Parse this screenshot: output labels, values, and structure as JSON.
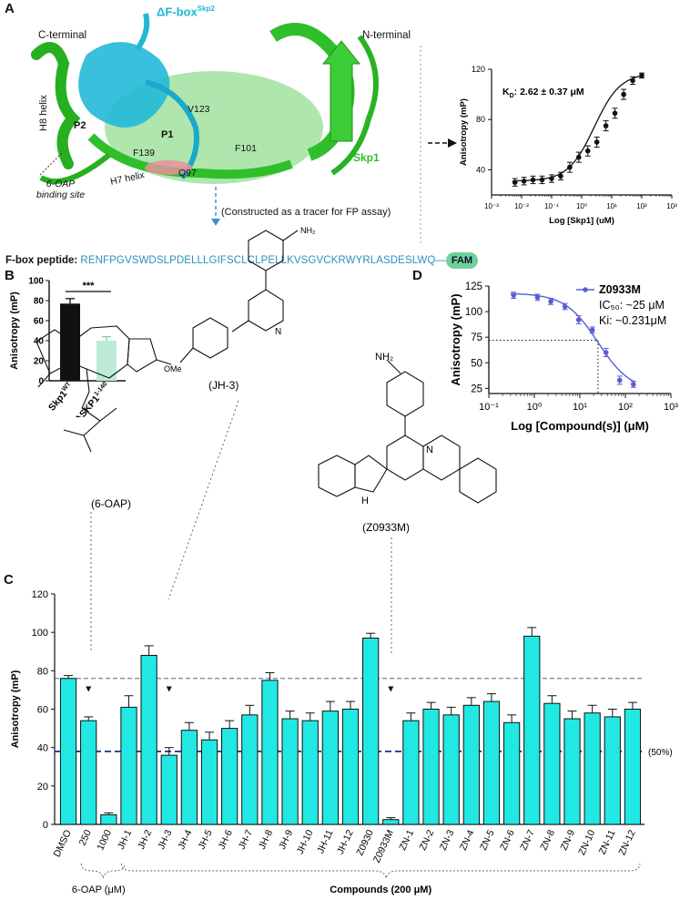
{
  "panels": {
    "A": "A",
    "B": "B",
    "C": "C",
    "D": "D"
  },
  "structure": {
    "c_terminal": "C-terminal",
    "n_terminal": "N-terminal",
    "fbox_label": "ΔF-box",
    "fbox_sup": "Skp2",
    "h8_helix": "H8 helix",
    "h7_helix": "H7 helix",
    "p1": "P1",
    "p2": "P2",
    "v123": "V123",
    "f139": "F139",
    "f101": "F101",
    "q97": "Q97",
    "skp1": "Skp1",
    "oap_site_line1": "6-OAP",
    "oap_site_line2": "binding site",
    "tracer_note": "(Constructed as a tracer for FP assay)"
  },
  "peptide": {
    "label": "F-box peptide",
    "sequence": "RENFPGVSWDSLPDELLLGIFSCLCLPELLKVSGVCKRWYRLASDESLWQ",
    "tag": "FAM"
  },
  "molecules": {
    "jh3": "(JH-3)",
    "oap": "(6-OAP)",
    "z0933m": "(Z0933M)",
    "nh2": "NH₂",
    "ome": "OMe",
    "n": "N",
    "nh": "H"
  },
  "chart_data": [
    {
      "panel": "A",
      "type": "scatter",
      "xlabel": "Log [Skp1] (uM)",
      "ylabel": "Anisotropy (mP)",
      "log_x": true,
      "xlim": [
        0.001,
        1000
      ],
      "ylim": [
        20,
        120
      ],
      "xticks": [
        "10⁻³",
        "10⁻²",
        "10⁻¹",
        "10⁰",
        "10¹",
        "10²",
        "10³"
      ],
      "yticks": [
        40,
        80,
        120
      ],
      "annotation": "K<sub>D</sub>: 2.62 ± 0.37 μM",
      "x": [
        0.006,
        0.012,
        0.024,
        0.048,
        0.1,
        0.2,
        0.4,
        0.8,
        1.6,
        3.2,
        6.4,
        12.8,
        25,
        50,
        100
      ],
      "y": [
        30,
        31,
        32,
        32,
        33,
        35,
        42,
        50,
        55,
        62,
        75,
        85,
        100,
        111,
        115
      ],
      "err": [
        3,
        3,
        3,
        3,
        3,
        3,
        4,
        4,
        4,
        4,
        4,
        4,
        4,
        3,
        2
      ],
      "fit": {
        "bottom": 31,
        "top": 117,
        "kd": 2.62,
        "hill": 1
      }
    },
    {
      "panel": "B",
      "type": "bar",
      "ylabel": "Anisotropy (mP)",
      "ylim": [
        0,
        100
      ],
      "yticks": [
        0,
        20,
        40,
        60,
        80,
        100
      ],
      "categories": [
        "Skp1",
        "ΔSKP1"
      ],
      "category_sups": [
        "WT",
        "1-140"
      ],
      "values": [
        77,
        40
      ],
      "errors": [
        5,
        4
      ],
      "colors": [
        "#111111",
        "#bdebd5"
      ],
      "significance": "***"
    },
    {
      "panel": "D",
      "type": "line",
      "xlabel": "Log [Compound(s)] (μM)",
      "ylabel": "Anisotropy (mP)",
      "log_x": true,
      "xlim": [
        0.1,
        1000
      ],
      "ylim": [
        20,
        125
      ],
      "xticks": [
        "10⁻¹",
        "10⁰",
        "10¹",
        "10²",
        "10³"
      ],
      "yticks": [
        25,
        50,
        75,
        100,
        125
      ],
      "series": [
        {
          "name": "Z0933M",
          "color": "#5a5ed6"
        }
      ],
      "legend": [
        "IC₅₀: ~25 μM",
        "Ki: ~0.231μM"
      ],
      "x": [
        0.35,
        1.17,
        2.3,
        4.7,
        9.4,
        18.8,
        37.5,
        75,
        150
      ],
      "y": [
        116,
        114,
        110,
        105,
        92,
        82,
        60,
        33,
        29
      ],
      "err": [
        3,
        3,
        3,
        3,
        4,
        3,
        4,
        4,
        3
      ],
      "fit": {
        "bottom": 22,
        "top": 118,
        "ic50": 25,
        "hill": 1.2
      },
      "reference_y": 72,
      "reference_x": 25
    },
    {
      "panel": "C",
      "type": "bar",
      "ylabel": "Anisotropy (mP)",
      "ylim": [
        0,
        120
      ],
      "yticks": [
        0,
        20,
        40,
        60,
        80,
        100,
        120
      ],
      "categories": [
        "DMSO",
        "250",
        "1000",
        "JH-1",
        "JH-2",
        "JH-3",
        "JH-4",
        "JH-5",
        "JH-6",
        "JH-7",
        "JH-8",
        "JH-9",
        "JH-10",
        "JH-11",
        "JH-12",
        "Z0930",
        "Z0933M",
        "ZN-1",
        "ZN-2",
        "ZN-3",
        "ZN-4",
        "ZN-5",
        "ZN-6",
        "ZN-7",
        "ZN-8",
        "ZN-9",
        "ZN-10",
        "ZN-11",
        "ZN-12"
      ],
      "values": [
        76,
        54,
        5,
        61,
        88,
        36,
        49,
        44,
        50,
        57,
        75,
        55,
        54,
        59,
        60,
        97,
        2.5,
        54,
        60,
        57,
        62,
        64,
        53,
        98,
        63,
        55,
        58,
        56,
        60
      ],
      "errors": [
        1.5,
        2,
        1,
        6,
        5,
        4,
        4,
        4,
        4,
        5,
        4,
        4,
        4,
        5,
        4,
        2.5,
        1,
        4,
        3.5,
        4,
        4,
        4,
        4,
        4.5,
        4,
        4,
        4,
        4,
        3.5
      ],
      "bar_color": "#21e8e3",
      "ref_lines": [
        76,
        38
      ],
      "ref_label": "(50%)",
      "group_labels": [
        "6-OAP (μM)",
        "Compounds (200 μM)"
      ]
    }
  ]
}
